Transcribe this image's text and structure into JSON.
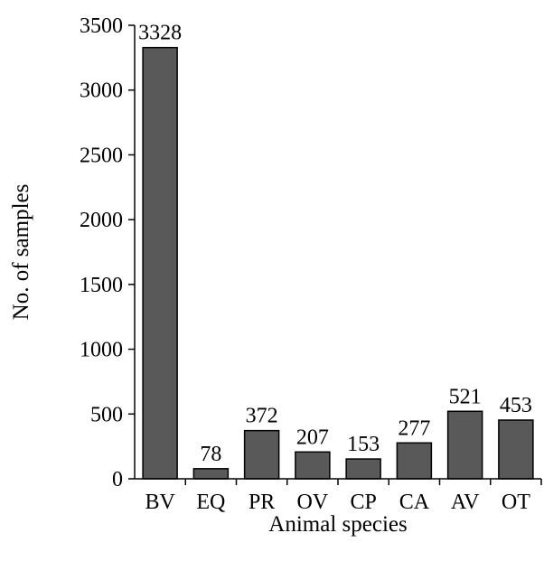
{
  "chart_data": {
    "type": "bar",
    "title": "",
    "xlabel": "Animal species",
    "ylabel": "No. of samples",
    "categories": [
      "BV",
      "EQ",
      "PR",
      "OV",
      "CP",
      "CA",
      "AV",
      "OT"
    ],
    "values": [
      3328,
      78,
      372,
      207,
      153,
      277,
      521,
      453
    ],
    "data_labels": [
      "3328",
      "78",
      "372",
      "207",
      "153",
      "277",
      "521",
      "453"
    ],
    "ylim": [
      0,
      3500
    ],
    "yticks": [
      0,
      500,
      1000,
      1500,
      2000,
      2500,
      3000,
      3500
    ],
    "grid": false,
    "legend": "none",
    "bar_color": "#595959",
    "bar_edge_color": "#000000"
  }
}
